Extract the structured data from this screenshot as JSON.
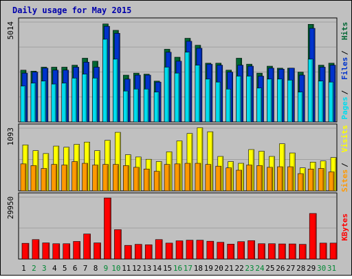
{
  "chart_data": {
    "type": "bar",
    "title": "Daily usage for May 2015",
    "categories": [
      "1",
      "2",
      "3",
      "4",
      "5",
      "6",
      "7",
      "8",
      "9",
      "10",
      "11",
      "12",
      "13",
      "14",
      "15",
      "16",
      "17",
      "18",
      "19",
      "20",
      "21",
      "22",
      "23",
      "24",
      "25",
      "26",
      "27",
      "28",
      "29",
      "30",
      "31"
    ],
    "weekend_days": [
      "2",
      "3",
      "9",
      "10",
      "16",
      "17",
      "23",
      "24",
      "30",
      "31"
    ],
    "panels": [
      {
        "id": "pages-files-hits",
        "max_label": "5014",
        "ylim": [
          0,
          5014
        ],
        "axis_labels": [
          "Pages",
          "Files",
          "Hits"
        ],
        "series": [
          {
            "name": "Hits",
            "color": "#006633",
            "values": [
              2600,
              2550,
              2750,
              2750,
              2750,
              2850,
              3200,
              3050,
              4920,
              4600,
              2350,
              2450,
              2400,
              2050,
              3650,
              3250,
              4200,
              3850,
              2950,
              2950,
              2600,
              3200,
              2900,
              2450,
              2800,
              2700,
              2700,
              2500,
              4900,
              2850,
              2950
            ]
          },
          {
            "name": "Files",
            "color": "#0033cc",
            "values": [
              2450,
              2500,
              2700,
              2600,
              2600,
              2750,
              3000,
              2750,
              4800,
              4450,
              2150,
              2350,
              2350,
              2000,
              3500,
              3050,
              4050,
              3700,
              2900,
              2850,
              2500,
              2850,
              2800,
              2300,
              2700,
              2650,
              2700,
              2350,
              4700,
              2750,
              2850
            ]
          },
          {
            "name": "Pages",
            "color": "#00ddee",
            "values": [
              1800,
              1950,
              2050,
              1900,
              1950,
              2200,
              2400,
              2200,
              4150,
              3150,
              1550,
              1650,
              1650,
              1500,
              2750,
              2450,
              3500,
              2850,
              2150,
              2000,
              1650,
              2300,
              2300,
              1700,
              2150,
              2150,
              2100,
              1500,
              3150,
              2050,
              2000
            ]
          }
        ]
      },
      {
        "id": "sites-visits",
        "max_label": "1093",
        "ylim": [
          0,
          1093
        ],
        "axis_labels": [
          "Sites",
          "Visits"
        ],
        "series": [
          {
            "name": "Visits",
            "color": "#ffff00",
            "values": [
              800,
              700,
              650,
              780,
              760,
              810,
              850,
              700,
              880,
              1020,
              630,
              590,
              550,
              510,
              680,
              870,
              1000,
              1100,
              1030,
              600,
              510,
              480,
              720,
              690,
              600,
              820,
              660,
              400,
              500,
              520,
              580
            ]
          },
          {
            "name": "Sites",
            "color": "#ff9900",
            "values": [
              470,
              440,
              390,
              460,
              450,
              510,
              480,
              450,
              460,
              460,
              440,
              410,
              380,
              340,
              460,
              470,
              480,
              480,
              460,
              430,
              400,
              360,
              450,
              440,
              410,
              420,
              420,
              300,
              380,
              390,
              330
            ]
          }
        ]
      },
      {
        "id": "kbytes",
        "max_label": "29950",
        "ylim": [
          0,
          29950
        ],
        "axis_labels": [
          "KBytes"
        ],
        "series": [
          {
            "name": "KBytes",
            "color": "#ff0000",
            "values": [
              7600,
              9400,
              7800,
              7400,
              7400,
              8500,
              12100,
              7800,
              29500,
              14200,
              6600,
              7100,
              6900,
              9400,
              7700,
              8800,
              9100,
              9100,
              8600,
              8100,
              7200,
              8400,
              8900,
              7400,
              7400,
              7300,
              7300,
              7100,
              22000,
              7700,
              7700
            ]
          }
        ]
      }
    ],
    "grid": true,
    "legend": "right-vertical"
  },
  "colors": {
    "outer_bg": "#c0c0c0",
    "plot_bg": "#c0c0c0",
    "title": "#0000aa",
    "weekday_label": "#000000",
    "weekend_label": "#008833",
    "grid": "#a0a0a0"
  }
}
